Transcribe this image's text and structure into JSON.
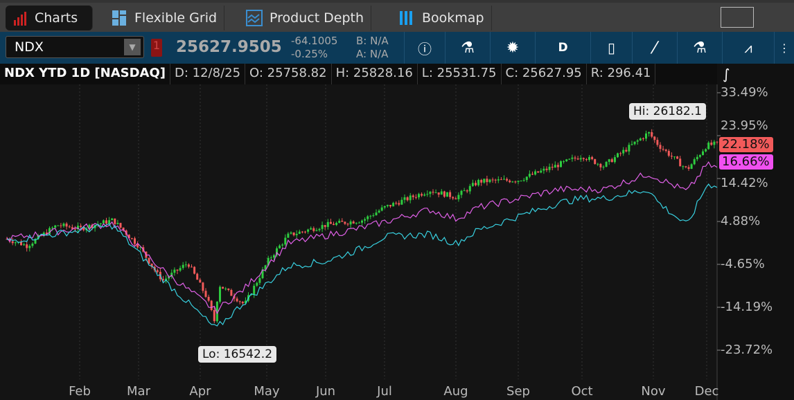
{
  "tabs": [
    {
      "label": "Charts",
      "icon": "bar-chart-icon",
      "active": true
    },
    {
      "label": "Flexible Grid",
      "icon": "grid-icon"
    },
    {
      "label": "Product Depth",
      "icon": "depth-icon"
    },
    {
      "label": "Bookmap",
      "icon": "bookmap-icon"
    }
  ],
  "toolbar": {
    "symbol": "NDX",
    "badge": "1",
    "last": "25627.9505",
    "change": "-64.1005",
    "change_pct": "-0.25%",
    "bid": "B: N/A",
    "ask": "A: N/A",
    "interval": "D"
  },
  "infobar": {
    "title": "NDX YTD 1D [NASDAQ]",
    "date": "D: 12/8/25",
    "open": "O: 25758.82",
    "high": "H: 25828.16",
    "low": "L: 25531.75",
    "close": "C: 25627.95",
    "range": "R: 296.41"
  },
  "colors": {
    "up": "#2ecc40",
    "down": "#f25a5a",
    "magenta": "#e060e8",
    "cyan": "#38d0e0",
    "toolbar": "#0c3a58"
  },
  "chart_data": {
    "type": "candlestick",
    "y_axis_ticks": [
      "33.49%",
      "23.95%",
      "14.42%",
      "4.88%",
      "-4.65%",
      "-14.19%",
      "-23.72%"
    ],
    "x_axis_ticks": [
      "Feb",
      "Mar",
      "Apr",
      "May",
      "Jun",
      "Jul",
      "Aug",
      "Sep",
      "Oct",
      "Nov",
      "Dec"
    ],
    "ylim": [
      -23.72,
      33.49
    ],
    "hi_label": "Hi: 26182.1",
    "lo_label": "Lo: 16542.2",
    "last_tags": [
      "22.18%",
      "16.66%"
    ],
    "series": [
      {
        "kind": "candles",
        "points": [
          [
            "01-02",
            1.0
          ],
          [
            "01-10",
            -0.5
          ],
          [
            "01-22",
            4.1
          ],
          [
            "02-01",
            3.3
          ],
          [
            "02-18",
            5.2
          ],
          [
            "03-01",
            -0.5
          ],
          [
            "03-10",
            -6.7
          ],
          [
            "03-13",
            -8.2
          ],
          [
            "03-25",
            -4.3
          ],
          [
            "04-04",
            -12
          ],
          [
            "04-08",
            -18.2
          ],
          [
            "04-09",
            -9
          ],
          [
            "04-21",
            -13.6
          ],
          [
            "05-02",
            -3.6
          ],
          [
            "05-12",
            1.8
          ],
          [
            "06-01",
            4.1
          ],
          [
            "06-20",
            5.2
          ],
          [
            "07-01",
            8
          ],
          [
            "07-20",
            11.8
          ],
          [
            "08-01",
            10.3
          ],
          [
            "08-12",
            13.8
          ],
          [
            "09-01",
            14.1
          ],
          [
            "09-20",
            17.5
          ],
          [
            "10-01",
            19.5
          ],
          [
            "10-10",
            17.2
          ],
          [
            "10-29",
            24.6
          ],
          [
            "11-04",
            21.8
          ],
          [
            "11-20",
            16.4
          ],
          [
            "12-01",
            21.8
          ],
          [
            "12-08",
            22.18
          ]
        ]
      },
      {
        "kind": "line",
        "color": "magenta",
        "points": [
          [
            "01-02",
            1.0
          ],
          [
            "02-18",
            4.5
          ],
          [
            "03-13",
            -6
          ],
          [
            "04-08",
            -15
          ],
          [
            "04-21",
            -10
          ],
          [
            "05-12",
            0
          ],
          [
            "06-20",
            3.5
          ],
          [
            "07-20",
            7.5
          ],
          [
            "08-01",
            5.5
          ],
          [
            "08-12",
            8
          ],
          [
            "09-20",
            12
          ],
          [
            "10-10",
            12
          ],
          [
            "10-29",
            15.5
          ],
          [
            "11-20",
            11.5
          ],
          [
            "12-01",
            17.5
          ],
          [
            "12-08",
            16.66
          ]
        ]
      },
      {
        "kind": "line",
        "color": "cyan",
        "points": [
          [
            "01-02",
            0.5
          ],
          [
            "02-18",
            4
          ],
          [
            "03-13",
            -8
          ],
          [
            "04-08",
            -19
          ],
          [
            "04-21",
            -13
          ],
          [
            "05-12",
            -5
          ],
          [
            "06-01",
            -4
          ],
          [
            "06-20",
            -1
          ],
          [
            "07-01",
            1.5
          ],
          [
            "07-20",
            2
          ],
          [
            "08-01",
            0
          ],
          [
            "08-12",
            3
          ],
          [
            "09-01",
            6
          ],
          [
            "09-20",
            9
          ],
          [
            "10-01",
            10
          ],
          [
            "10-10",
            10
          ],
          [
            "10-29",
            12
          ],
          [
            "11-04",
            9
          ],
          [
            "11-20",
            4
          ],
          [
            "12-01",
            13
          ],
          [
            "12-08",
            13
          ]
        ]
      }
    ]
  }
}
